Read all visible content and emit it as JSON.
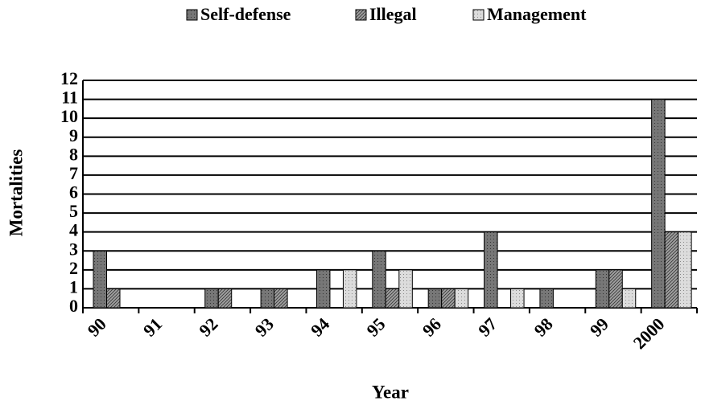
{
  "chart_data": {
    "type": "bar",
    "categories": [
      "90",
      "91",
      "92",
      "93",
      "94",
      "95",
      "96",
      "97",
      "98",
      "99",
      "2000"
    ],
    "series": [
      {
        "name": "Self-defense",
        "color": "#777777",
        "values": [
          3,
          0,
          1,
          1,
          2,
          3,
          1,
          4,
          1,
          2,
          11
        ]
      },
      {
        "name": "Illegal",
        "color": "#a0a0a0",
        "values": [
          1,
          0,
          1,
          1,
          0,
          1,
          1,
          0,
          0,
          2,
          4
        ]
      },
      {
        "name": "Management",
        "color": "#dcdcdc",
        "values": [
          0,
          0,
          0,
          0,
          2,
          2,
          1,
          1,
          0,
          1,
          4
        ]
      }
    ],
    "y_label": "Mortalities",
    "x_label": "Year",
    "ylim": [
      0,
      12
    ],
    "yticks": [
      0,
      1,
      2,
      3,
      4,
      5,
      6,
      7,
      8,
      9,
      10,
      11,
      12
    ],
    "grid": true,
    "legend": "top"
  }
}
